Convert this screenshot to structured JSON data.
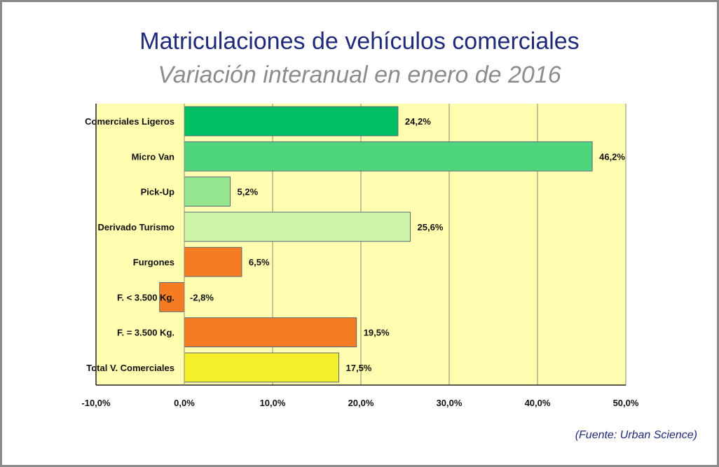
{
  "chart_data": {
    "type": "bar",
    "orientation": "horizontal",
    "title": "Matriculaciones de vehículos comerciales",
    "subtitle": "Variación interanual en enero de 2016",
    "categories": [
      "Comerciales Ligeros",
      "Micro Van",
      "Pick-Up",
      "Derivado Turismo",
      "Furgones",
      "F. < 3.500 Kg.",
      "F. = 3.500 Kg.",
      "Total V. Comerciales"
    ],
    "values": [
      24.2,
      46.2,
      5.2,
      25.6,
      6.5,
      -2.8,
      19.5,
      17.5
    ],
    "value_labels": [
      "24,2%",
      "46,2%",
      "5,2%",
      "25,6%",
      "6,5%",
      "-2,8%",
      "19,5%",
      "17,5%"
    ],
    "colors": [
      "#00bf63",
      "#4fd57c",
      "#94e58e",
      "#ccf3a6",
      "#f57c22",
      "#f57c22",
      "#f57c22",
      "#f5ef2c"
    ],
    "xlim": [
      -10,
      50
    ],
    "xticks": [
      -10,
      0,
      10,
      20,
      30,
      40,
      50
    ],
    "xtick_labels": [
      "-10,0%",
      "0,0%",
      "10,0%",
      "20,0%",
      "30,0%",
      "40,0%",
      "50,0%"
    ],
    "grid": true,
    "plot_background": "#fffdb0",
    "xlabel": "",
    "ylabel": "",
    "source": "(Fuente: Urban Science)"
  }
}
